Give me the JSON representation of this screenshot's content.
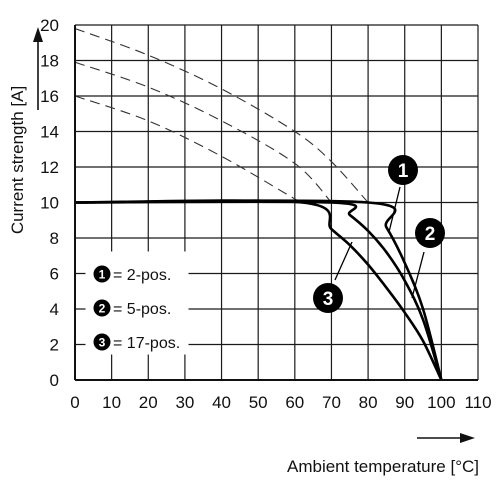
{
  "chart_data": {
    "type": "line",
    "title": "",
    "xlabel": "Ambient temperature [°C]",
    "ylabel": "Current strength [A]",
    "xlim": [
      0,
      110
    ],
    "ylim": [
      0,
      20
    ],
    "x_ticks": [
      0,
      10,
      20,
      30,
      40,
      50,
      60,
      70,
      80,
      90,
      100,
      110
    ],
    "y_ticks": [
      0,
      2,
      4,
      6,
      8,
      10,
      12,
      14,
      16,
      18,
      20
    ],
    "grid": true,
    "series": [
      {
        "name": "2-pos.",
        "marker": "1",
        "style": "solid",
        "x": [
          0,
          80,
          85,
          90,
          95,
          100
        ],
        "y": [
          10,
          10,
          8.6,
          6.6,
          4.0,
          0
        ]
      },
      {
        "name": "5-pos.",
        "marker": "2",
        "style": "solid",
        "x": [
          0,
          70,
          75,
          80,
          85,
          90,
          95,
          100
        ],
        "y": [
          10,
          10,
          9.3,
          8.4,
          7.2,
          5.6,
          3.4,
          0
        ]
      },
      {
        "name": "17-pos.",
        "marker": "3",
        "style": "solid",
        "x": [
          0,
          62,
          70,
          75,
          80,
          85,
          90,
          95,
          100
        ],
        "y": [
          10,
          10,
          8.5,
          7.6,
          6.5,
          5.2,
          3.8,
          2.2,
          0
        ]
      },
      {
        "name": "",
        "style": "dashed",
        "x": [
          0,
          20,
          40,
          60,
          70,
          80
        ],
        "y": [
          19.8,
          18.3,
          16.4,
          14.0,
          12.3,
          10
        ]
      },
      {
        "name": "",
        "style": "dashed",
        "x": [
          0,
          20,
          40,
          60,
          70
        ],
        "y": [
          17.9,
          16.5,
          14.6,
          12.2,
          10
        ]
      },
      {
        "name": "",
        "style": "dashed",
        "x": [
          0,
          20,
          40,
          60,
          62
        ],
        "y": [
          16.0,
          14.6,
          12.6,
          10.2,
          10
        ]
      }
    ],
    "legend": {
      "placement": "bottom-left",
      "entries": [
        {
          "marker": "1",
          "text": "= 2-pos."
        },
        {
          "marker": "2",
          "text": "= 5-pos."
        },
        {
          "marker": "3",
          "text": "= 17-pos."
        }
      ]
    },
    "callouts": [
      "1",
      "2",
      "3"
    ]
  }
}
